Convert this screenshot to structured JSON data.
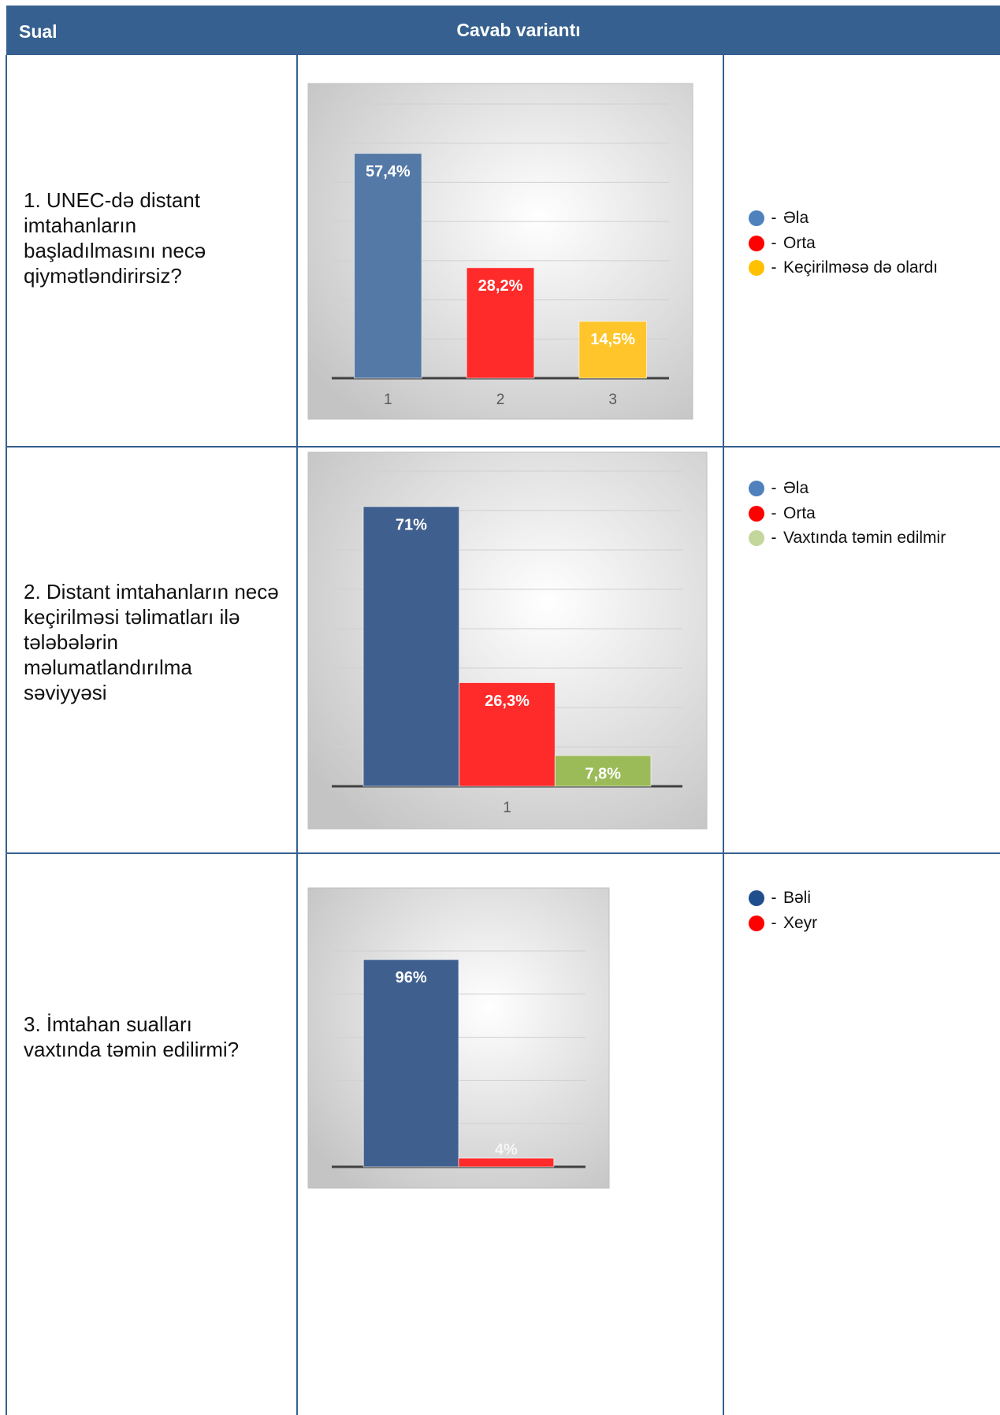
{
  "header": {
    "col1": "Sual",
    "col2": "Cavab variantı"
  },
  "rows": [
    {
      "question": "1. UNEC-də distant imtahanların başladılmasını necə qiymətləndirirsiz?",
      "legend": [
        {
          "label": "Əla",
          "color": "#4F81BD"
        },
        {
          "label": "Orta",
          "color": "#FF0000"
        },
        {
          "label": "Keçirilməsə də olardı",
          "color": "#FFC000"
        }
      ]
    },
    {
      "question": "2. Distant imtahanların necə keçirilməsi təlimatları ilə tələbələrin məlumatlandırılma səviyyəsi",
      "legend": [
        {
          "label": "Əla",
          "color": "#4F81BD"
        },
        {
          "label": "Orta",
          "color": "#FF0000"
        },
        {
          "label": "Vaxtında təmin edilmir",
          "color": "#C3D69B"
        }
      ]
    },
    {
      "question": "3. İmtahan sualları vaxtında təmin edilirmi?",
      "legend": [
        {
          "label": "Bəli",
          "color": "#1F4E8C"
        },
        {
          "label": "Xeyr",
          "color": "#FF0000"
        }
      ]
    }
  ],
  "legend_dash": "-",
  "chart_data": [
    {
      "type": "bar",
      "categories": [
        "1",
        "2",
        "3"
      ],
      "values": [
        57.4,
        28.2,
        14.5
      ],
      "value_labels": [
        "57,4%",
        "28,2%",
        "14,5%"
      ],
      "colors": [
        "#5479A6",
        "#FF2A2A",
        "#FFC52A"
      ],
      "ylim": [
        0,
        70
      ],
      "yticks": [
        0,
        10,
        20,
        30,
        40,
        50,
        60,
        70
      ],
      "grid": true
    },
    {
      "type": "bar",
      "categories": [
        "1"
      ],
      "series": [
        {
          "color": "#3F5F8F",
          "values": [
            71
          ],
          "value_labels": [
            "71%"
          ]
        },
        {
          "color": "#FF2A2A",
          "values": [
            26.3
          ],
          "value_labels": [
            "26,3%"
          ]
        },
        {
          "color": "#9BBB59",
          "values": [
            7.8
          ],
          "value_labels": [
            "7,8%"
          ]
        }
      ],
      "ylim": [
        0,
        80
      ],
      "yticks": [
        0,
        10,
        20,
        30,
        40,
        50,
        60,
        70,
        80
      ],
      "grid": true
    },
    {
      "type": "bar",
      "categories": [
        null
      ],
      "series": [
        {
          "color": "#3F5F8F",
          "values": [
            96
          ],
          "value_labels": [
            "96%"
          ]
        },
        {
          "color": "#FF2A2A",
          "values": [
            4
          ],
          "value_labels": [
            "4%"
          ]
        }
      ],
      "ylim": [
        0,
        100
      ],
      "yticks": [
        0,
        20,
        40,
        60,
        80,
        100
      ],
      "grid": true
    }
  ]
}
